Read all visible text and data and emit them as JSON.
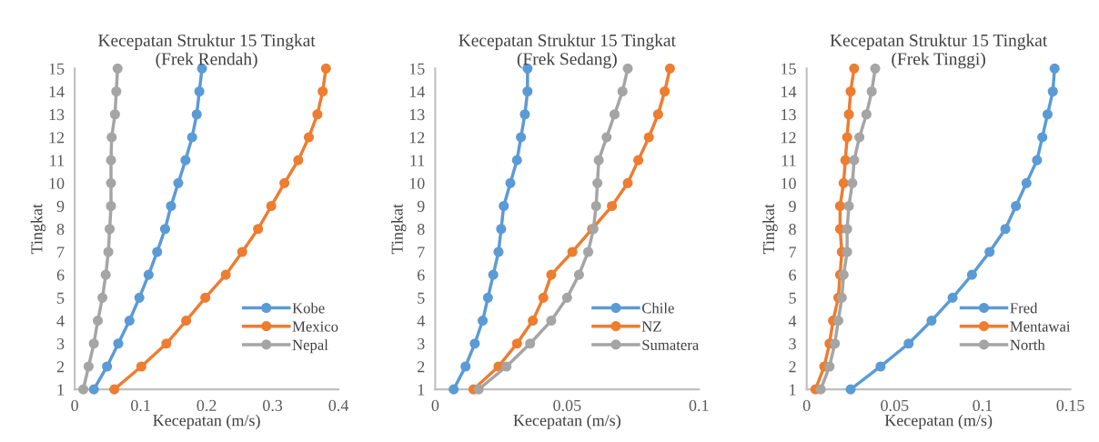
{
  "chart_data": [
    {
      "type": "line",
      "title": "Kecepatan Struktur 15 Tingkat\n(Frek Rendah)",
      "xlabel": "Kecepatan (m/s)",
      "ylabel": "Tingkat",
      "xlim": [
        0,
        0.4
      ],
      "xticks": [
        0,
        0.1,
        0.2,
        0.3,
        0.4
      ],
      "ylim": [
        1,
        15
      ],
      "yticks": [
        1,
        2,
        3,
        4,
        5,
        6,
        7,
        8,
        9,
        10,
        11,
        12,
        13,
        14,
        15
      ],
      "grid": false,
      "legend": "bottom right",
      "marker": "circle",
      "line_style": "solid",
      "series": [
        {
          "name": "Kobe",
          "color": "#5b9bd5",
          "x": [
            0.029,
            0.049,
            0.066,
            0.083,
            0.098,
            0.112,
            0.125,
            0.137,
            0.146,
            0.157,
            0.168,
            0.178,
            0.185,
            0.189,
            0.193
          ],
          "values": [
            1,
            2,
            3,
            4,
            5,
            6,
            7,
            8,
            9,
            10,
            11,
            12,
            13,
            14,
            15
          ]
        },
        {
          "name": "Mexico",
          "color": "#ed7d31",
          "x": [
            0.06,
            0.101,
            0.139,
            0.169,
            0.198,
            0.229,
            0.254,
            0.278,
            0.298,
            0.318,
            0.339,
            0.355,
            0.368,
            0.376,
            0.381
          ],
          "values": [
            1,
            2,
            3,
            4,
            5,
            6,
            7,
            8,
            9,
            10,
            11,
            12,
            13,
            14,
            15
          ]
        },
        {
          "name": "Nepal",
          "color": "#a5a5a5",
          "x": [
            0.013,
            0.021,
            0.029,
            0.035,
            0.042,
            0.047,
            0.051,
            0.053,
            0.055,
            0.055,
            0.055,
            0.056,
            0.061,
            0.063,
            0.065
          ],
          "values": [
            1,
            2,
            3,
            4,
            5,
            6,
            7,
            8,
            9,
            10,
            11,
            12,
            13,
            14,
            15
          ]
        }
      ]
    },
    {
      "type": "line",
      "title": "Kecepatan Struktur 15 Tingkat\n(Frek Sedang)",
      "xlabel": "Kecepatan (m/s)",
      "ylabel": "Tingkat",
      "xlim": [
        0,
        0.1
      ],
      "xticks": [
        0,
        0.05,
        0.1
      ],
      "ylim": [
        1,
        15
      ],
      "yticks": [
        1,
        2,
        3,
        4,
        5,
        6,
        7,
        8,
        9,
        10,
        11,
        12,
        13,
        14,
        15
      ],
      "grid": false,
      "legend": "bottom right",
      "marker": "circle",
      "line_style": "solid",
      "series": [
        {
          "name": "Chile",
          "color": "#5b9bd5",
          "x": [
            0.007,
            0.0115,
            0.015,
            0.018,
            0.02,
            0.022,
            0.024,
            0.025,
            0.026,
            0.0285,
            0.031,
            0.0325,
            0.034,
            0.035,
            0.035
          ],
          "values": [
            1,
            2,
            3,
            4,
            5,
            6,
            7,
            8,
            9,
            10,
            11,
            12,
            13,
            14,
            15
          ]
        },
        {
          "name": "NZ",
          "color": "#ed7d31",
          "x": [
            0.0145,
            0.024,
            0.031,
            0.037,
            0.041,
            0.044,
            0.052,
            0.0595,
            0.067,
            0.073,
            0.077,
            0.081,
            0.0845,
            0.087,
            0.089
          ],
          "values": [
            1,
            2,
            3,
            4,
            5,
            6,
            7,
            8,
            9,
            10,
            11,
            12,
            13,
            14,
            15
          ]
        },
        {
          "name": "Sumatera",
          "color": "#a5a5a5",
          "x": [
            0.0165,
            0.027,
            0.036,
            0.044,
            0.05,
            0.0545,
            0.058,
            0.06,
            0.061,
            0.0615,
            0.062,
            0.065,
            0.068,
            0.071,
            0.073
          ],
          "values": [
            1,
            2,
            3,
            4,
            5,
            6,
            7,
            8,
            9,
            10,
            11,
            12,
            13,
            14,
            15
          ]
        }
      ]
    },
    {
      "type": "line",
      "title": "Kecepatan Struktur 15 Tingkat\n(Frek Tinggi)",
      "xlabel": "Kecepatan (m/s)",
      "ylabel": "Tingkat",
      "xlim": [
        0,
        0.15
      ],
      "xticks": [
        0,
        0.05,
        0.1,
        0.15
      ],
      "ylim": [
        1,
        15
      ],
      "yticks": [
        1,
        2,
        3,
        4,
        5,
        6,
        7,
        8,
        9,
        10,
        11,
        12,
        13,
        14,
        15
      ],
      "grid": false,
      "legend": "bottom right",
      "marker": "circle",
      "line_style": "solid",
      "series": [
        {
          "name": "Fred",
          "color": "#5b9bd5",
          "x": [
            0.025,
            0.042,
            0.058,
            0.071,
            0.083,
            0.094,
            0.104,
            0.113,
            0.119,
            0.125,
            0.131,
            0.134,
            0.137,
            0.14,
            0.141
          ],
          "values": [
            1,
            2,
            3,
            4,
            5,
            6,
            7,
            8,
            9,
            10,
            11,
            12,
            13,
            14,
            15
          ]
        },
        {
          "name": "Mentawai",
          "color": "#ed7d31",
          "x": [
            0.005,
            0.01,
            0.013,
            0.015,
            0.018,
            0.019,
            0.02,
            0.019,
            0.019,
            0.021,
            0.022,
            0.023,
            0.024,
            0.025,
            0.027
          ],
          "values": [
            1,
            2,
            3,
            4,
            5,
            6,
            7,
            8,
            9,
            10,
            11,
            12,
            13,
            14,
            15
          ]
        },
        {
          "name": "North",
          "color": "#a5a5a5",
          "x": [
            0.008,
            0.013,
            0.016,
            0.018,
            0.02,
            0.021,
            0.023,
            0.023,
            0.024,
            0.026,
            0.027,
            0.03,
            0.034,
            0.037,
            0.039
          ],
          "values": [
            1,
            2,
            3,
            4,
            5,
            6,
            7,
            8,
            9,
            10,
            11,
            12,
            13,
            14,
            15
          ]
        }
      ]
    }
  ]
}
